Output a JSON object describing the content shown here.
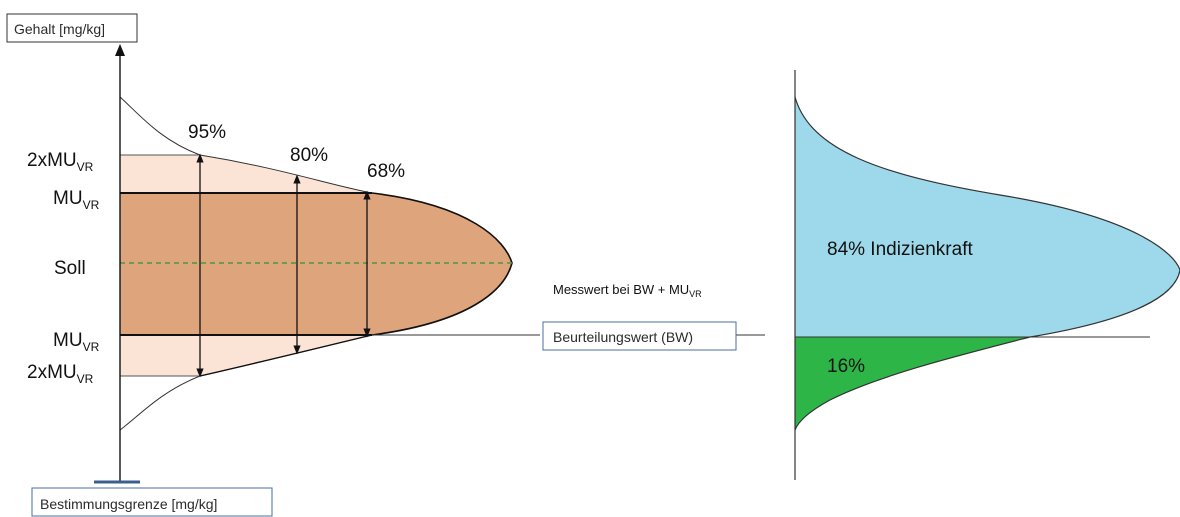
{
  "left": {
    "y_axis_label": "Gehalt [mg/kg]",
    "x_axis_label": "Bestimmungsgrenze [mg/kg]",
    "levels": {
      "upper_2mu_main": "2xMU",
      "upper_2mu_sub": "VR",
      "upper_mu_main": "MU",
      "upper_mu_sub": "VR",
      "soll": "Soll",
      "lower_mu_main": "MU",
      "lower_mu_sub": "VR",
      "lower_2mu_main": "2xMU",
      "lower_2mu_sub": "VR"
    },
    "percentages": {
      "p95": "95%",
      "p80": "80%",
      "p68": "68%"
    }
  },
  "middle": {
    "measured_main": "Messwert bei BW + MU",
    "measured_sub": "VR",
    "assessment_box": "Beurteilungswert (BW)"
  },
  "right": {
    "upper_label": "84% Indizienkraft",
    "lower_label": "16%"
  },
  "colors": {
    "core_fill": "#dea47b",
    "outer_fill": "#fbe3d6",
    "blue_fill": "#9dd9ea",
    "green_fill": "#2db548",
    "soll_line": "#4a9a3a",
    "box_border": "#4a6fa5",
    "base_marker": "#3a5f8f"
  }
}
